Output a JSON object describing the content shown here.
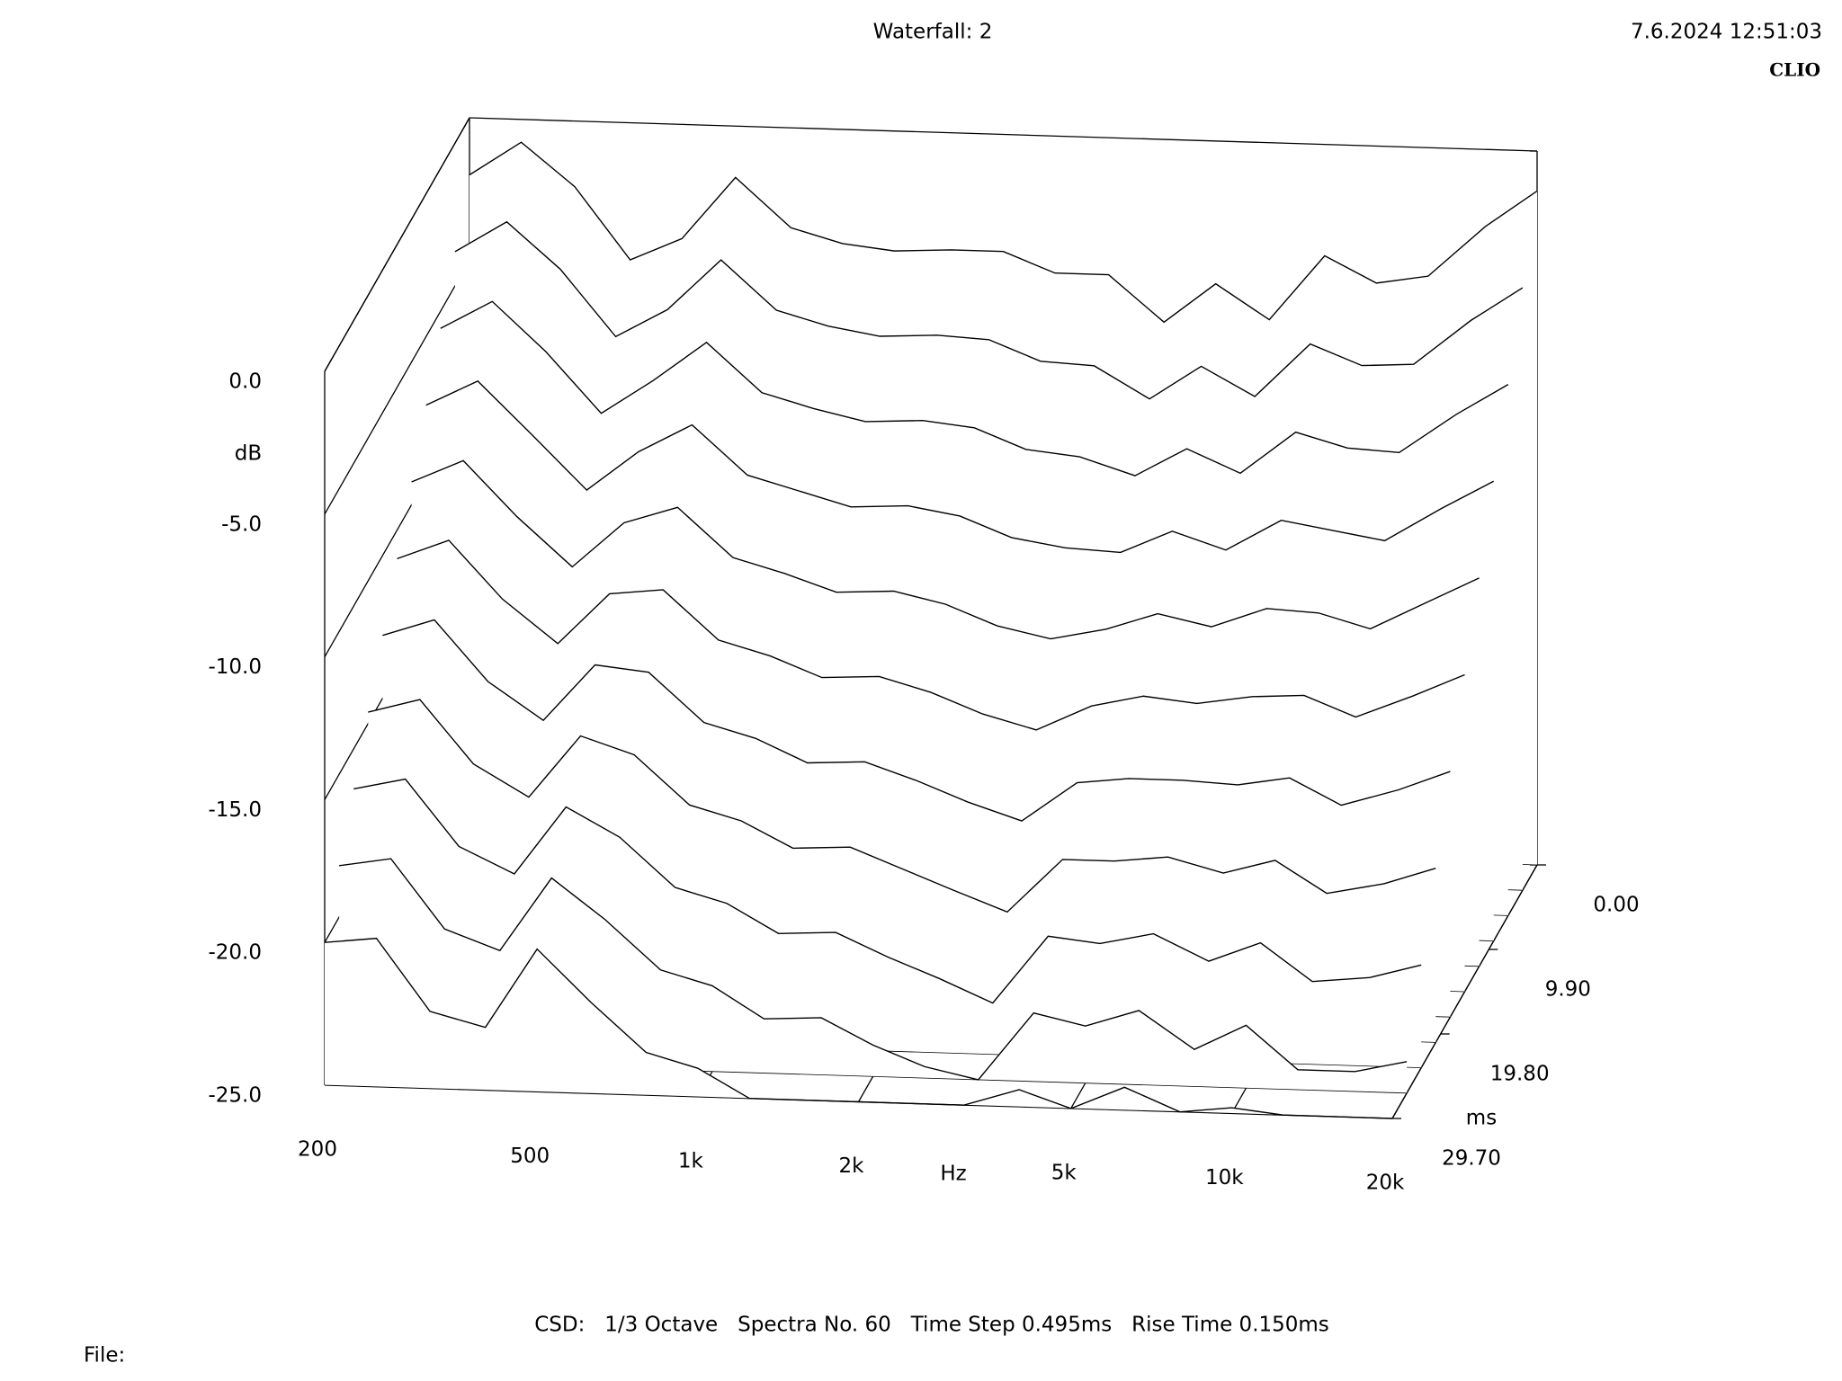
{
  "header": {
    "title": "Waterfall: 2",
    "timestamp": "7.6.2024 12:51:03",
    "brand": "CLIO"
  },
  "chart_data": {
    "type": "waterfall",
    "xlabel": "Hz",
    "ylabel": "dB",
    "zlabel": "ms",
    "xlog": true,
    "x": [
      200,
      250,
      315,
      400,
      500,
      630,
      800,
      1000,
      1250,
      1600,
      2000,
      2500,
      3150,
      4000,
      5000,
      6300,
      8000,
      10000,
      12500,
      16000,
      20000
    ],
    "xlim": [
      200,
      20000
    ],
    "xticks": [
      200,
      500,
      {
        "value": 1000,
        "label": "1k"
      },
      {
        "value": 2000,
        "label": "2k"
      },
      {
        "value": 5000,
        "label": "5k"
      },
      {
        "value": 10000,
        "label": "10k"
      },
      {
        "value": 20000,
        "label": "20k"
      }
    ],
    "ylim": [
      -25,
      0
    ],
    "yticks": [
      {
        "value": 0,
        "label": "0.0"
      },
      {
        "value": -5,
        "label": "-5.0"
      },
      {
        "value": -10,
        "label": "-10.0"
      },
      {
        "value": -15,
        "label": "-15.0"
      },
      {
        "value": -20,
        "label": "-20.0"
      },
      {
        "value": -25,
        "label": "-25.0"
      }
    ],
    "zlim": [
      0,
      29.7
    ],
    "zticks": [
      {
        "value": 0,
        "label": "0.00"
      },
      {
        "value": 9.9,
        "label": "9.90"
      },
      {
        "value": 19.8,
        "label": "19.80"
      },
      {
        "value": 29.7,
        "label": "29.70"
      }
    ],
    "color": "#000000",
    "series": [
      {
        "time": 0,
        "values": [
          -2.0,
          -0.8,
          -2.3,
          -4.8,
          -4.0,
          -1.8,
          -3.5,
          -4.0,
          -4.2,
          -4.1,
          -4.1,
          -4.8,
          -4.8,
          -6.4,
          -5.0,
          -6.2,
          -3.9,
          -4.8,
          -4.5,
          -2.7,
          -1.4
        ]
      },
      {
        "time": 2.97,
        "values": [
          -3.8,
          -2.7,
          -4.3,
          -6.6,
          -5.6,
          -3.8,
          -5.5,
          -6.0,
          -6.3,
          -6.2,
          -6.3,
          -7.0,
          -7.1,
          -8.2,
          -7.0,
          -8.0,
          -6.1,
          -6.8,
          -6.7,
          -5.1,
          -3.9
        ]
      },
      {
        "time": 5.94,
        "values": [
          -5.6,
          -4.6,
          -6.3,
          -8.4,
          -7.2,
          -5.8,
          -7.5,
          -8.0,
          -8.4,
          -8.3,
          -8.5,
          -9.2,
          -9.4,
          -10.0,
          -9.0,
          -9.8,
          -8.3,
          -8.8,
          -8.9,
          -7.5,
          -6.4
        ]
      },
      {
        "time": 8.91,
        "values": [
          -7.4,
          -6.5,
          -8.3,
          -10.2,
          -8.8,
          -7.8,
          -9.5,
          -10.0,
          -10.5,
          -10.4,
          -10.7,
          -11.4,
          -11.7,
          -11.8,
          -11.0,
          -11.6,
          -10.5,
          -10.8,
          -11.1,
          -9.9,
          -8.9
        ]
      },
      {
        "time": 11.88,
        "values": [
          -9.2,
          -8.4,
          -10.3,
          -12.0,
          -10.4,
          -9.8,
          -11.5,
          -12.0,
          -12.6,
          -12.5,
          -12.9,
          -13.6,
          -14.0,
          -13.6,
          -13.0,
          -13.4,
          -12.7,
          -12.8,
          -13.3,
          -12.3,
          -11.4
        ]
      },
      {
        "time": 14.85,
        "values": [
          -11.0,
          -10.3,
          -12.3,
          -13.8,
          -12.0,
          -11.8,
          -13.5,
          -14.0,
          -14.7,
          -14.6,
          -15.1,
          -15.8,
          -16.3,
          -15.4,
          -15.0,
          -15.2,
          -14.9,
          -14.8,
          -15.5,
          -14.7,
          -13.9
        ]
      },
      {
        "time": 17.82,
        "values": [
          -12.8,
          -12.2,
          -14.3,
          -15.6,
          -13.6,
          -13.8,
          -15.5,
          -16.0,
          -16.8,
          -16.7,
          -17.3,
          -18.0,
          -18.6,
          -17.2,
          -17.0,
          -17.0,
          -17.1,
          -16.8,
          -17.7,
          -17.1,
          -16.4
        ]
      },
      {
        "time": 20.79,
        "values": [
          -14.6,
          -14.1,
          -16.3,
          -17.4,
          -15.2,
          -15.8,
          -17.5,
          -18.0,
          -18.9,
          -18.8,
          -19.5,
          -20.2,
          -20.9,
          -19.0,
          -19.0,
          -18.8,
          -19.3,
          -18.8,
          -19.9,
          -19.5,
          -18.9
        ]
      },
      {
        "time": 23.76,
        "values": [
          -16.4,
          -16.0,
          -18.3,
          -19.2,
          -16.8,
          -17.8,
          -19.5,
          -20.0,
          -21.0,
          -20.9,
          -21.7,
          -22.4,
          -23.2,
          -20.8,
          -21.0,
          -20.6,
          -21.5,
          -20.8,
          -22.1,
          -21.9,
          -21.4
        ]
      },
      {
        "time": 26.73,
        "values": [
          -18.2,
          -17.9,
          -20.3,
          -21.0,
          -18.4,
          -19.8,
          -21.5,
          -22.0,
          -23.1,
          -23.0,
          -23.9,
          -24.6,
          -25.0,
          -22.6,
          -23.0,
          -22.4,
          -23.7,
          -22.8,
          -24.3,
          -24.3,
          -23.9
        ]
      },
      {
        "time": 29.7,
        "values": [
          -20.0,
          -19.8,
          -22.3,
          -22.8,
          -20.0,
          -21.8,
          -23.5,
          -24.0,
          -25.0,
          -25.0,
          -25.0,
          -25.0,
          -25.0,
          -24.4,
          -25.0,
          -24.2,
          -25.0,
          -24.8,
          -25.0,
          -25.0,
          -25.0
        ]
      }
    ]
  },
  "footer": {
    "settings": "CSD:   1/3 Octave   Spectra No. 60   Time Step 0.495ms   Rise Time 0.150ms",
    "file": "File:"
  }
}
